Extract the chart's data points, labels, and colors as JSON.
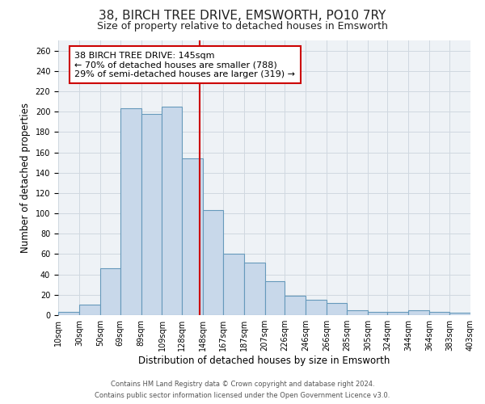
{
  "title": "38, BIRCH TREE DRIVE, EMSWORTH, PO10 7RY",
  "subtitle": "Size of property relative to detached houses in Emsworth",
  "xlabel": "Distribution of detached houses by size in Emsworth",
  "ylabel": "Number of detached properties",
  "bar_left_edges": [
    10,
    30,
    50,
    69,
    89,
    109,
    128,
    148,
    167,
    187,
    207,
    226,
    246,
    266,
    285,
    305,
    324,
    344,
    364,
    383
  ],
  "bar_widths": [
    20,
    20,
    19,
    20,
    20,
    19,
    20,
    19,
    20,
    20,
    19,
    20,
    20,
    19,
    20,
    19,
    20,
    20,
    19,
    20
  ],
  "bar_heights": [
    3,
    10,
    46,
    203,
    198,
    205,
    154,
    103,
    60,
    52,
    33,
    19,
    15,
    12,
    5,
    3,
    3,
    5,
    3,
    2
  ],
  "tick_labels": [
    "10sqm",
    "30sqm",
    "50sqm",
    "69sqm",
    "89sqm",
    "109sqm",
    "128sqm",
    "148sqm",
    "167sqm",
    "187sqm",
    "207sqm",
    "226sqm",
    "246sqm",
    "266sqm",
    "285sqm",
    "305sqm",
    "324sqm",
    "344sqm",
    "364sqm",
    "383sqm",
    "403sqm"
  ],
  "bar_color": "#c8d8ea",
  "bar_edge_color": "#6699bb",
  "vline_x": 145,
  "vline_color": "#cc0000",
  "annotation_line1": "38 BIRCH TREE DRIVE: 145sqm",
  "annotation_line2": "← 70% of detached houses are smaller (788)",
  "annotation_line3": "29% of semi-detached houses are larger (319) →",
  "ylim": [
    0,
    270
  ],
  "yticks": [
    0,
    20,
    40,
    60,
    80,
    100,
    120,
    140,
    160,
    180,
    200,
    220,
    240,
    260
  ],
  "grid_color": "#d0d8e0",
  "background_color": "#eef2f6",
  "footer_line1": "Contains HM Land Registry data © Crown copyright and database right 2024.",
  "footer_line2": "Contains public sector information licensed under the Open Government Licence v3.0.",
  "title_fontsize": 11,
  "subtitle_fontsize": 9,
  "axis_label_fontsize": 8.5,
  "tick_fontsize": 7,
  "annotation_fontsize": 8,
  "footer_fontsize": 6
}
